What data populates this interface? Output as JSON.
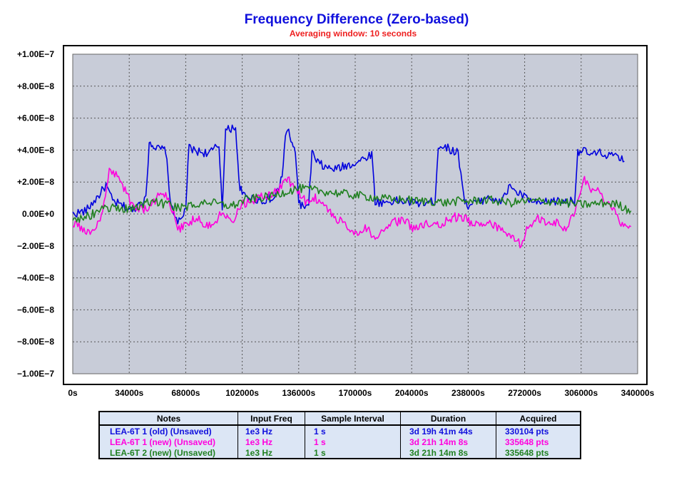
{
  "chart_data": {
    "type": "line",
    "title": "Frequency Difference (Zero-based)",
    "subtitle": "Averaging window: 10 seconds",
    "xlabel": "",
    "ylabel": "",
    "xlim": [
      0,
      340000
    ],
    "ylim": [
      -1e-07,
      1e-07
    ],
    "grid": true,
    "x_ticks": [
      "0s",
      "34000s",
      "68000s",
      "102000s",
      "136000s",
      "170000s",
      "204000s",
      "238000s",
      "272000s",
      "306000s",
      "340000s"
    ],
    "y_ticks": [
      "+1.00E−7",
      "+8.00E−8",
      "+6.00E−8",
      "+4.00E−8",
      "+2.00E−8",
      "0.00E+0",
      "−2.00E−8",
      "−4.00E−8",
      "−6.00E−8",
      "−8.00E−8",
      "−1.00E−7"
    ],
    "series": [
      {
        "name": "LEA-6T 1 (old) (Unsaved)",
        "color": "#0000dd",
        "x": [
          0,
          8000,
          16000,
          20000,
          24000,
          30000,
          36000,
          40000,
          44000,
          46000,
          48000,
          50000,
          56000,
          58000,
          60000,
          64000,
          66000,
          68000,
          70000,
          72000,
          76000,
          82000,
          88000,
          90000,
          92000,
          96000,
          98000,
          100000,
          102000,
          108000,
          114000,
          118000,
          120000,
          124000,
          126000,
          128000,
          130000,
          132000,
          134000,
          136000,
          138000,
          142000,
          144000,
          146000,
          148000,
          152000,
          158000,
          164000,
          170000,
          176000,
          180000,
          182000,
          186000,
          192000,
          198000,
          206000,
          212000,
          218000,
          220000,
          222000,
          228000,
          232000,
          236000,
          238000,
          242000,
          246000,
          250000,
          256000,
          264000,
          266000,
          270000,
          274000,
          280000,
          288000,
          296000,
          302000,
          304000,
          306000,
          308000,
          312000,
          318000,
          326000,
          332000
        ],
        "values": [
          0,
          2e-09,
          1.2e-08,
          1.8e-08,
          8e-09,
          5e-09,
          2e-09,
          7e-09,
          9e-09,
          4.5e-08,
          4.4e-08,
          4.1e-08,
          4e-08,
          1.5e-08,
          2e-09,
          -5e-09,
          -3e-09,
          5e-09,
          4.2e-08,
          4e-08,
          3.9e-08,
          3.8e-08,
          4.3e-08,
          5e-09,
          5.2e-08,
          5.4e-08,
          5.5e-08,
          2e-08,
          1.2e-08,
          1e-08,
          8e-09,
          1e-08,
          8e-09,
          1.6e-08,
          2.4e-08,
          4.8e-08,
          5.3e-08,
          4.2e-08,
          4e-08,
          8e-09,
          5e-09,
          4e-09,
          4e-08,
          3.3e-08,
          3.2e-08,
          2.9e-08,
          2.8e-08,
          3e-08,
          3.2e-08,
          3.5e-08,
          3.8e-08,
          8e-09,
          7e-09,
          8e-09,
          8e-09,
          7e-09,
          7e-09,
          8e-09,
          4.2e-08,
          4.3e-08,
          4e-08,
          3.8e-08,
          8e-09,
          5e-09,
          7e-09,
          8e-09,
          1.2e-08,
          6e-09,
          1.8e-08,
          1.4e-08,
          1.2e-08,
          9e-09,
          6e-09,
          8e-09,
          8e-09,
          8e-09,
          3.9e-08,
          4e-08,
          3.9e-08,
          3.7e-08,
          3.8e-08,
          3.6e-08,
          3.3e-08
        ]
      },
      {
        "name": "LEA-6T 1 (new) (Unsaved)",
        "color": "#ff00dd",
        "x": [
          0,
          6000,
          12000,
          18000,
          22000,
          26000,
          30000,
          36000,
          42000,
          48000,
          52000,
          56000,
          60000,
          64000,
          70000,
          76000,
          80000,
          86000,
          90000,
          96000,
          100000,
          106000,
          112000,
          118000,
          124000,
          128000,
          134000,
          140000,
          146000,
          152000,
          158000,
          164000,
          170000,
          176000,
          182000,
          188000,
          194000,
          200000,
          206000,
          212000,
          218000,
          224000,
          230000,
          236000,
          242000,
          248000,
          254000,
          260000,
          266000,
          270000,
          274000,
          280000,
          286000,
          292000,
          296000,
          300000,
          304000,
          308000,
          312000,
          316000,
          320000,
          324000,
          330000,
          336000
        ],
        "values": [
          -5e-09,
          -1e-08,
          -1.2e-08,
          0.0,
          2.8e-08,
          2.5e-08,
          1.8e-08,
          5e-09,
          3e-09,
          5e-09,
          1.4e-08,
          1.2e-08,
          3e-09,
          -1e-08,
          -5e-09,
          -2e-09,
          -8e-09,
          -5e-09,
          3e-09,
          -5e-09,
          5e-09,
          8e-09,
          1e-08,
          1.2e-08,
          1.5e-08,
          2.3e-08,
          1.6e-08,
          8e-09,
          1e-08,
          5e-09,
          -3e-09,
          -6e-09,
          -1.2e-08,
          -8e-09,
          -1.5e-08,
          -1e-08,
          -5e-09,
          -4e-09,
          -1e-08,
          -6e-09,
          -8e-09,
          -5e-09,
          -2e-09,
          -3e-09,
          -7e-09,
          -5e-09,
          -8e-09,
          -1.2e-08,
          -1.5e-08,
          -2e-08,
          -8e-09,
          -3e-09,
          -5e-09,
          -6e-09,
          -1e-08,
          -2e-09,
          6e-09,
          2.2e-08,
          1.5e-08,
          1.6e-08,
          8e-09,
          4e-09,
          -5e-09,
          -8e-09
        ]
      },
      {
        "name": "LEA-6T 2 (new) (Unsaved)",
        "color": "#208020",
        "x": [
          0,
          8000,
          16000,
          24000,
          32000,
          40000,
          48000,
          56000,
          64000,
          72000,
          80000,
          88000,
          96000,
          104000,
          112000,
          120000,
          128000,
          136000,
          144000,
          152000,
          160000,
          168000,
          176000,
          184000,
          192000,
          200000,
          208000,
          216000,
          224000,
          232000,
          240000,
          248000,
          256000,
          264000,
          272000,
          280000,
          288000,
          296000,
          304000,
          312000,
          320000,
          328000,
          336000
        ],
        "values": [
          -3e-09,
          -2e-09,
          2e-09,
          4e-09,
          3e-09,
          5e-09,
          8e-09,
          6e-09,
          4e-09,
          5e-09,
          8e-09,
          6e-09,
          5e-09,
          9e-09,
          1e-08,
          1.1e-08,
          1.4e-08,
          1.6e-08,
          1.5e-08,
          1.4e-08,
          1.3e-08,
          1.2e-08,
          1.1e-08,
          1e-08,
          9e-09,
          9e-09,
          8e-09,
          8e-09,
          7e-09,
          8e-09,
          8e-09,
          9e-09,
          8e-09,
          7e-09,
          8e-09,
          8e-09,
          8e-09,
          7e-09,
          6e-09,
          6e-09,
          7e-09,
          6e-09,
          2e-09
        ]
      }
    ]
  },
  "table": {
    "headers": [
      "Notes",
      "Input Freq",
      "Sample Interval",
      "Duration",
      "Acquired"
    ],
    "rows": [
      {
        "color": "#1010dd",
        "cells": [
          "LEA-6T 1 (old) (Unsaved)",
          "1e3 Hz",
          "1 s",
          "3d 19h 41m 44s",
          "330104 pts"
        ]
      },
      {
        "color": "#ff00dd",
        "cells": [
          "LEA-6T 1 (new) (Unsaved)",
          "1e3 Hz",
          "1 s",
          "3d 21h 14m 8s",
          "335648 pts"
        ]
      },
      {
        "color": "#208020",
        "cells": [
          "LEA-6T 2 (new) (Unsaved)",
          "1e3 Hz",
          "1 s",
          "3d 21h 14m 8s",
          "335648 pts"
        ]
      }
    ]
  }
}
